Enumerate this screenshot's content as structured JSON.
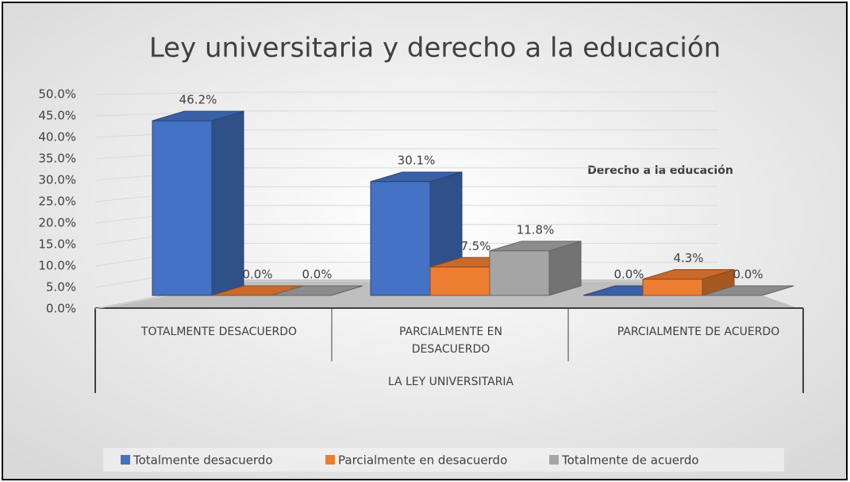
{
  "chart_data": {
    "type": "bar",
    "title": "Ley universitaria y derecho a la educación",
    "annotation": "Derecho a la educación",
    "x_axis_label": "LA LEY UNIVERSITARIA",
    "categories": [
      "TOTALMENTE DESACUERDO",
      "PARCIALMENTE EN DESACUERDO",
      "PARCIALMENTE DE ACUERDO"
    ],
    "series": [
      {
        "name": "Totalmente desacuerdo",
        "color": "#4472c4",
        "values": [
          46.2,
          30.1,
          0.0
        ],
        "value_labels": [
          "46.2%",
          "30.1%",
          "0.0%"
        ]
      },
      {
        "name": "Parcialmente en desacuerdo",
        "color": "#ed7d31",
        "values": [
          0.0,
          7.5,
          4.3
        ],
        "value_labels": [
          "0.0%",
          "7.5%",
          "4.3%"
        ]
      },
      {
        "name": "Totalmente de acuerdo",
        "color": "#a5a5a5",
        "values": [
          0.0,
          11.8,
          0.0
        ],
        "value_labels": [
          "0.0%",
          "11.8%",
          "0.0%"
        ]
      }
    ],
    "ylim": [
      0,
      50
    ],
    "yticks": [
      {
        "value": 0,
        "label": "0.0%"
      },
      {
        "value": 5,
        "label": "5.0%"
      },
      {
        "value": 10,
        "label": "10.0%"
      },
      {
        "value": 15,
        "label": "15.0%"
      },
      {
        "value": 20,
        "label": "20.0%"
      },
      {
        "value": 25,
        "label": "25.0%"
      },
      {
        "value": 30,
        "label": "30.0%"
      },
      {
        "value": 35,
        "label": "35.0%"
      },
      {
        "value": 40,
        "label": "40.0%"
      },
      {
        "value": 45,
        "label": "45.0%"
      },
      {
        "value": 50,
        "label": "50.0%"
      }
    ],
    "grid": true,
    "legend": "bottom"
  }
}
